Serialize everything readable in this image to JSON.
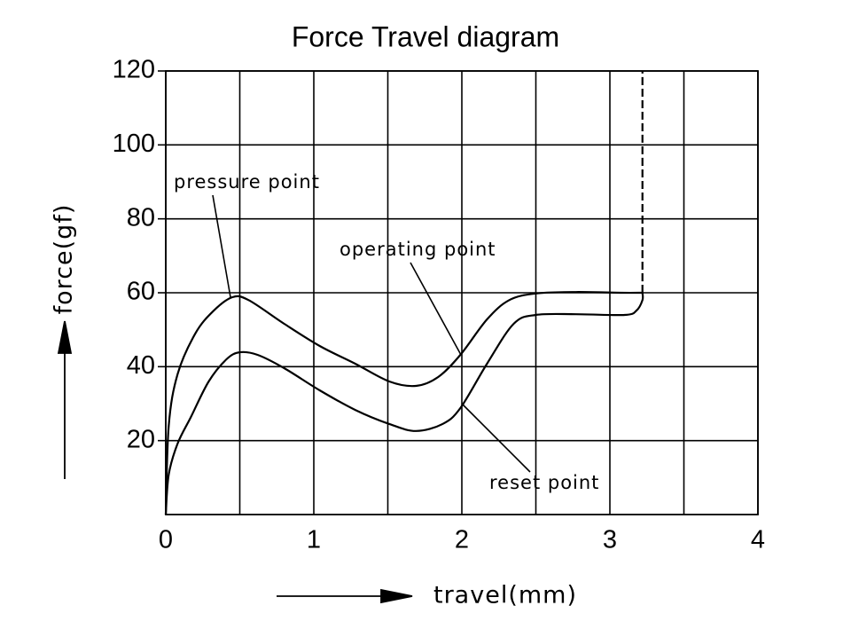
{
  "chart_data": {
    "type": "line",
    "title": "Force Travel diagram",
    "xlabel": "travel(mm)",
    "ylabel": "force(gf)",
    "xlim": [
      0,
      4
    ],
    "xticks": [
      0,
      1,
      2,
      3,
      4
    ],
    "xminor": [
      0.5,
      1.5,
      2.5,
      3.5
    ],
    "ylim": [
      0,
      120
    ],
    "yticks": [
      20,
      40,
      60,
      80,
      100,
      120
    ],
    "grid": true,
    "series": [
      {
        "color": "#000000",
        "x": [
          0,
          0.02,
          0.08,
          0.2,
          0.32,
          0.45,
          0.56,
          0.8,
          1.04,
          1.28,
          1.51,
          1.69,
          1.84,
          1.99,
          2.17,
          2.32,
          2.5,
          2.77,
          3.07,
          3.22
        ],
        "values": [
          0,
          24,
          38,
          49,
          55,
          58.8,
          58,
          51.6,
          45.6,
          40.8,
          36,
          34.8,
          37.2,
          43.2,
          52.8,
          58,
          59.8,
          60.2,
          60,
          60
        ]
      },
      {
        "color": "#000000",
        "x": [
          0,
          0.02,
          0.08,
          0.17,
          0.29,
          0.41,
          0.5,
          0.62,
          0.8,
          1.04,
          1.28,
          1.51,
          1.69,
          1.87,
          1.99,
          2.17,
          2.35,
          2.5,
          2.77,
          3.1,
          3.18,
          3.22,
          3.22
        ],
        "values": [
          0,
          10.8,
          19.2,
          26.4,
          36,
          42,
          43.9,
          43.2,
          39.6,
          33.6,
          28.3,
          24.5,
          22.6,
          24.5,
          28.8,
          40.8,
          51.6,
          54,
          54.2,
          54,
          55.2,
          58,
          60
        ]
      },
      {
        "color": "#000000",
        "dashed": true,
        "x": [
          3.22,
          3.22
        ],
        "values": [
          60,
          120
        ]
      }
    ],
    "annotations": [
      "pressure point",
      "operating point",
      "reset point"
    ]
  }
}
